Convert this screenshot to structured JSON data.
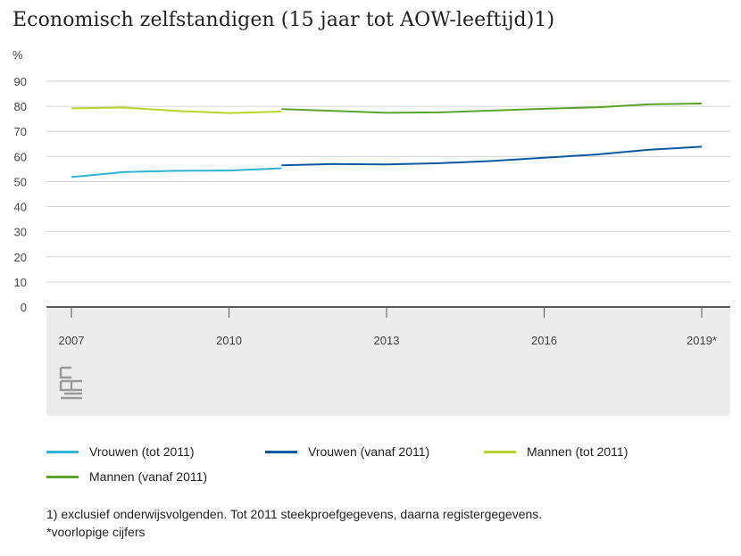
{
  "title": "Economisch zelfstandigen (15 jaar tot AOW-leeftijd)1)",
  "chart_data": {
    "type": "line",
    "title": "Economisch zelfstandigen (15 jaar tot AOW-leeftijd)1)",
    "ylabel": "%",
    "xlabel": "",
    "ylim": [
      0,
      90
    ],
    "yticks": [
      0,
      10,
      20,
      30,
      40,
      50,
      60,
      70,
      80,
      90
    ],
    "xlim": [
      2007,
      2019
    ],
    "xticks": [
      {
        "value": 2007,
        "label": "2007"
      },
      {
        "value": 2010,
        "label": "2010"
      },
      {
        "value": 2013,
        "label": "2013"
      },
      {
        "value": 2016,
        "label": "2016"
      },
      {
        "value": 2019,
        "label": "2019*"
      }
    ],
    "grid": true,
    "legend_position": "bottom",
    "series": [
      {
        "name": "Vrouwen (tot 2011)",
        "color": "#2fb3d6",
        "x": [
          2007,
          2008,
          2009,
          2010,
          2011
        ],
        "y": [
          51.8,
          53.8,
          54.3,
          54.4,
          55.3
        ]
      },
      {
        "name": "Vrouwen (vanaf 2011)",
        "color": "#0b5aa1",
        "x": [
          2011,
          2012,
          2013,
          2014,
          2015,
          2016,
          2017,
          2018,
          2019
        ],
        "y": [
          56.5,
          57.0,
          56.8,
          57.3,
          58.2,
          59.5,
          60.8,
          62.7,
          63.9
        ]
      },
      {
        "name": "Mannen (tot 2011)",
        "color": "#b6d42b",
        "x": [
          2007,
          2008,
          2009,
          2010,
          2011
        ],
        "y": [
          79.2,
          79.5,
          78.2,
          77.3,
          77.9
        ]
      },
      {
        "name": "Mannen (vanaf 2011)",
        "color": "#5aa427",
        "x": [
          2011,
          2012,
          2013,
          2014,
          2015,
          2016,
          2017,
          2018,
          2019
        ],
        "y": [
          78.9,
          78.2,
          77.4,
          77.6,
          78.3,
          79.0,
          79.6,
          80.8,
          81.1
        ]
      }
    ]
  },
  "footnote": {
    "line1": "1) exclusief onderwijsvolgenden. Tot 2011 steekproefgegevens, daarna registergegevens.",
    "line2": "*voorlopige cijfers"
  },
  "logo": {
    "icon": "cbs-logo-icon"
  }
}
